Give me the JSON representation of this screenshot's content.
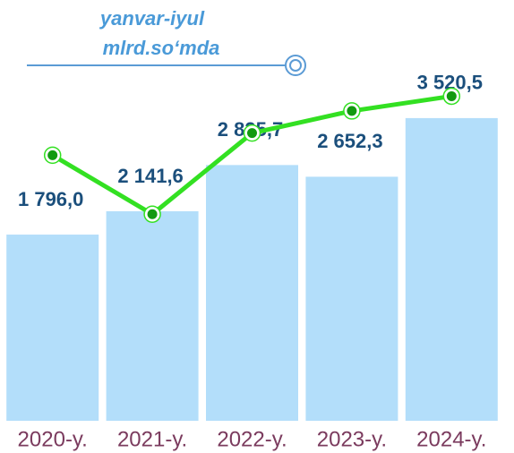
{
  "chart_data": {
    "type": "bar",
    "title": [
      "yanvar-iyul",
      "mlrd.so‘mda"
    ],
    "categories": [
      "2020-y.",
      "2021-y.",
      "2022-y.",
      "2023-y.",
      "2024-y."
    ],
    "series": [
      {
        "type": "bar",
        "color": "#b3defa",
        "values": [
          1796.0,
          2141.6,
          2825.7,
          2652.3,
          3520.5
        ],
        "value_labels": [
          "1 796,0",
          "2 141,6",
          "2 825,7",
          "2 652,3",
          "3 520,5"
        ]
      },
      {
        "type": "line",
        "color": "#33e022",
        "axis": "y2",
        "values": [
          72,
          56,
          78,
          84,
          88
        ]
      }
    ],
    "ylim": [
      -960,
      4500
    ],
    "y2lim": [
      0,
      100
    ]
  }
}
